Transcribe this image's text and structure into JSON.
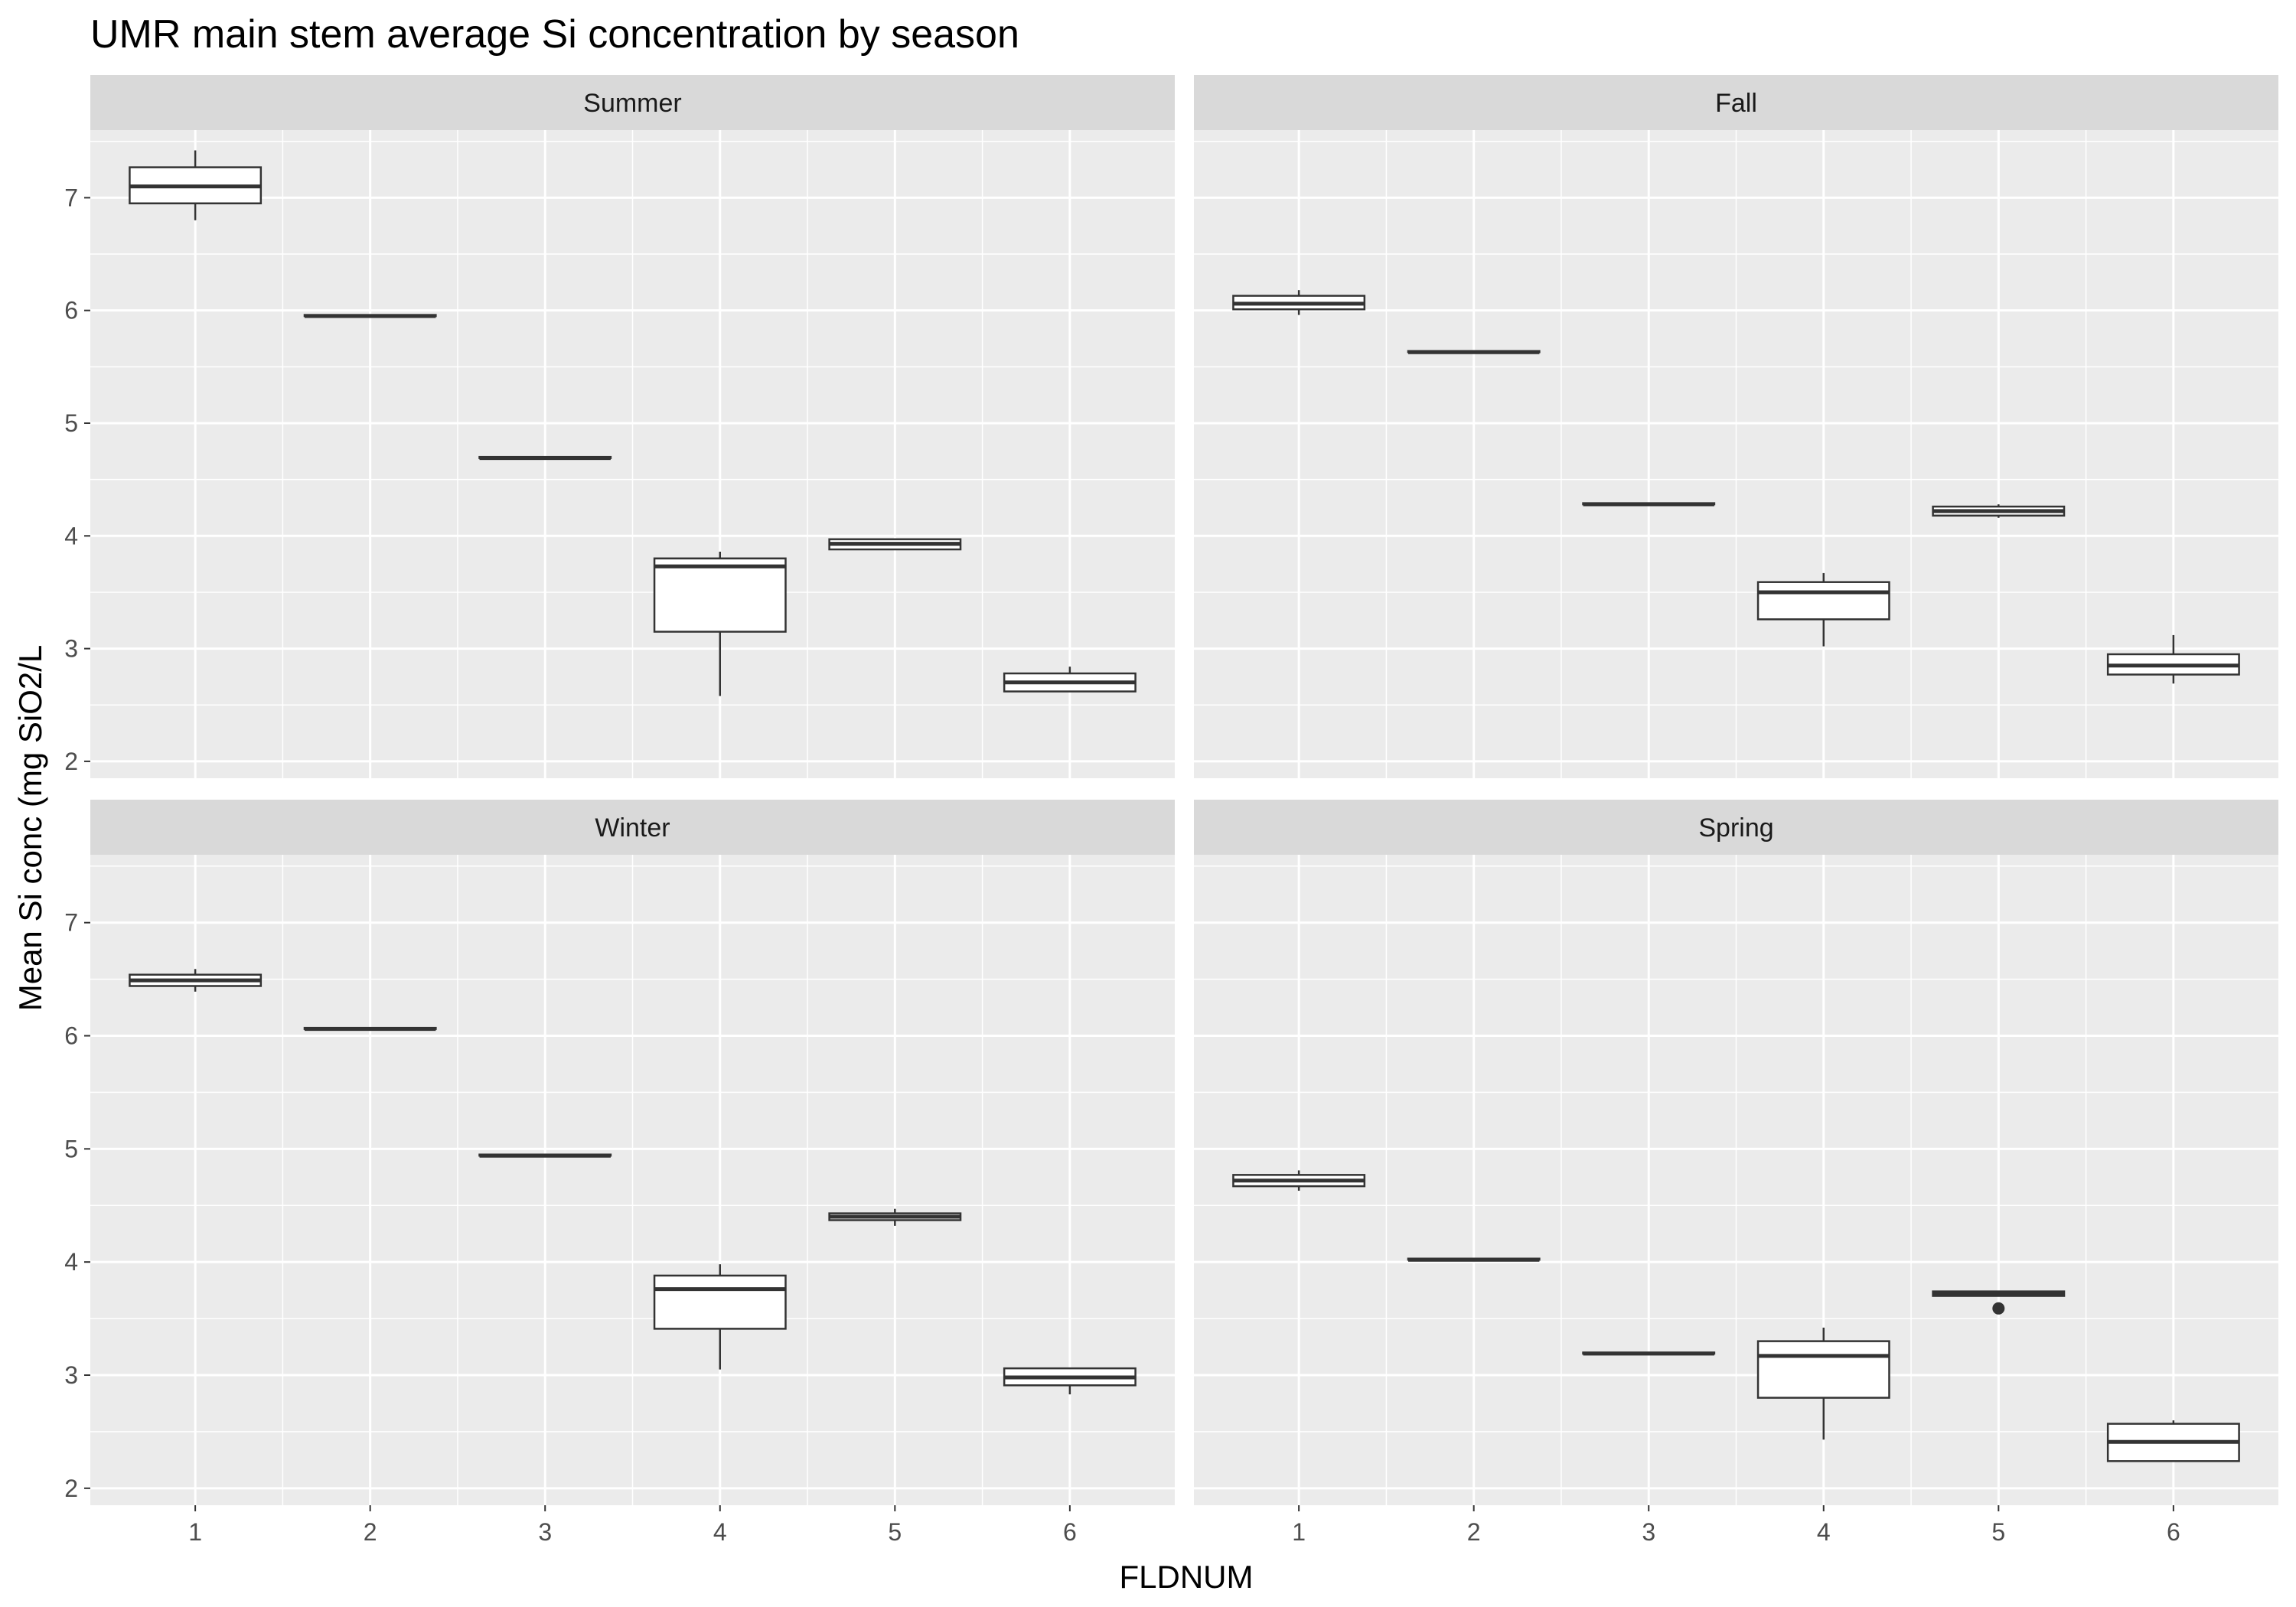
{
  "chart_data": {
    "type": "boxplot",
    "title": "UMR main stem average Si concentration by season",
    "xlabel": "FLDNUM",
    "ylabel": "Mean Si conc (mg SiO2/L",
    "categories": [
      "1",
      "2",
      "3",
      "4",
      "5",
      "6"
    ],
    "y_ticks": [
      "2",
      "3",
      "4",
      "5",
      "6",
      "7"
    ],
    "ylim": [
      1.85,
      7.6
    ],
    "grid": true,
    "panels": [
      {
        "name": "Summer",
        "boxes": [
          {
            "x": "1",
            "min": 6.8,
            "q1": 6.95,
            "median": 7.1,
            "q3": 7.27,
            "max": 7.42,
            "outliers": []
          },
          {
            "x": "2",
            "min": 5.95,
            "q1": 5.95,
            "median": 5.95,
            "q3": 5.96,
            "max": 5.96,
            "outliers": []
          },
          {
            "x": "3",
            "min": 4.69,
            "q1": 4.69,
            "median": 4.69,
            "q3": 4.7,
            "max": 4.7,
            "outliers": []
          },
          {
            "x": "4",
            "min": 2.58,
            "q1": 3.15,
            "median": 3.73,
            "q3": 3.8,
            "max": 3.86,
            "outliers": []
          },
          {
            "x": "5",
            "min": 3.88,
            "q1": 3.88,
            "median": 3.93,
            "q3": 3.97,
            "max": 3.97,
            "outliers": []
          },
          {
            "x": "6",
            "min": 2.62,
            "q1": 2.62,
            "median": 2.7,
            "q3": 2.78,
            "max": 2.84,
            "outliers": []
          }
        ]
      },
      {
        "name": "Fall",
        "boxes": [
          {
            "x": "1",
            "min": 5.96,
            "q1": 6.01,
            "median": 6.06,
            "q3": 6.13,
            "max": 6.18,
            "outliers": []
          },
          {
            "x": "2",
            "min": 5.63,
            "q1": 5.63,
            "median": 5.63,
            "q3": 5.64,
            "max": 5.64,
            "outliers": []
          },
          {
            "x": "3",
            "min": 4.28,
            "q1": 4.28,
            "median": 4.28,
            "q3": 4.29,
            "max": 4.29,
            "outliers": []
          },
          {
            "x": "4",
            "min": 3.02,
            "q1": 3.26,
            "median": 3.5,
            "q3": 3.59,
            "max": 3.67,
            "outliers": []
          },
          {
            "x": "5",
            "min": 4.16,
            "q1": 4.18,
            "median": 4.22,
            "q3": 4.26,
            "max": 4.28,
            "outliers": []
          },
          {
            "x": "6",
            "min": 2.69,
            "q1": 2.77,
            "median": 2.85,
            "q3": 2.95,
            "max": 3.12,
            "outliers": []
          }
        ]
      },
      {
        "name": "Winter",
        "boxes": [
          {
            "x": "1",
            "min": 6.39,
            "q1": 6.44,
            "median": 6.49,
            "q3": 6.54,
            "max": 6.59,
            "outliers": []
          },
          {
            "x": "2",
            "min": 6.06,
            "q1": 6.06,
            "median": 6.06,
            "q3": 6.07,
            "max": 6.07,
            "outliers": []
          },
          {
            "x": "3",
            "min": 4.94,
            "q1": 4.94,
            "median": 4.94,
            "q3": 4.95,
            "max": 4.95,
            "outliers": []
          },
          {
            "x": "4",
            "min": 3.05,
            "q1": 3.41,
            "median": 3.76,
            "q3": 3.88,
            "max": 3.98,
            "outliers": []
          },
          {
            "x": "5",
            "min": 4.32,
            "q1": 4.37,
            "median": 4.4,
            "q3": 4.43,
            "max": 4.47,
            "outliers": []
          },
          {
            "x": "6",
            "min": 2.83,
            "q1": 2.91,
            "median": 2.98,
            "q3": 3.06,
            "max": 3.06,
            "outliers": []
          }
        ]
      },
      {
        "name": "Spring",
        "boxes": [
          {
            "x": "1",
            "min": 4.63,
            "q1": 4.67,
            "median": 4.72,
            "q3": 4.77,
            "max": 4.81,
            "outliers": []
          },
          {
            "x": "2",
            "min": 4.02,
            "q1": 4.02,
            "median": 4.02,
            "q3": 4.03,
            "max": 4.03,
            "outliers": []
          },
          {
            "x": "3",
            "min": 3.19,
            "q1": 3.19,
            "median": 3.19,
            "q3": 3.2,
            "max": 3.2,
            "outliers": []
          },
          {
            "x": "4",
            "min": 2.43,
            "q1": 2.8,
            "median": 3.17,
            "q3": 3.3,
            "max": 3.42,
            "outliers": []
          },
          {
            "x": "5",
            "min": 3.7,
            "q1": 3.7,
            "median": 3.72,
            "q3": 3.74,
            "max": 3.74,
            "outliers": [
              3.59
            ]
          },
          {
            "x": "6",
            "min": 2.24,
            "q1": 2.24,
            "median": 2.41,
            "q3": 2.57,
            "max": 2.6,
            "outliers": []
          }
        ]
      }
    ]
  }
}
